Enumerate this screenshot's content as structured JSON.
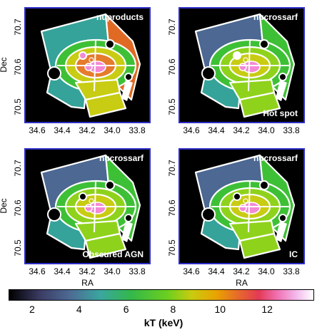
{
  "panels": [
    {
      "label": "nuproducts",
      "sublabel": "",
      "variant": "a"
    },
    {
      "label": "nucrossarf",
      "sublabel": "Hot spot",
      "variant": "b"
    },
    {
      "label": "nucrossarf",
      "sublabel": "Obscured AGN",
      "variant": "c"
    },
    {
      "label": "nucrossarf",
      "sublabel": "IC",
      "variant": "d"
    }
  ],
  "axes": {
    "xlabel": "RA",
    "ylabel": "Dec",
    "xticks": [
      "34.6",
      "34.4",
      "34.2",
      "34.0",
      "33.8"
    ],
    "yticks": [
      "70.7",
      "70.6",
      "70.5"
    ]
  },
  "colorbar": {
    "label": "kT (keV)",
    "ticks": [
      "2",
      "4",
      "6",
      "8",
      "10",
      "12"
    ],
    "range": [
      1,
      14
    ]
  },
  "colors": {
    "teal": "#35a39a",
    "slate": "#4c6893",
    "green": "#3ec036",
    "lime": "#8fd21c",
    "yellow": "#c8cc12",
    "orange": "#e57b2c",
    "darkorange": "#e06a24",
    "pink": "#f28ad6",
    "frame": "#2d2dc8"
  },
  "chart_data": {
    "type": "heatmap",
    "panels": [
      "nuproducts",
      "nucrossarf",
      "nucrossarf",
      "nucrossarf"
    ],
    "xlabel": "RA",
    "ylabel": "Dec",
    "xlim": [
      34.7,
      33.75
    ],
    "ylim": [
      70.45,
      70.78
    ],
    "colorbar_label": "kT (keV)",
    "colorbar_range": [
      1,
      14
    ]
  }
}
